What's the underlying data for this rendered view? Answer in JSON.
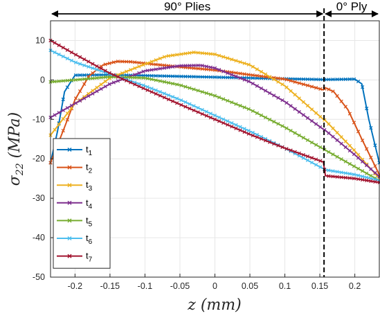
{
  "chart_data": {
    "type": "line",
    "xlabel": "z (mm)",
    "ylabel": "σ22 (MPa)",
    "xlim": [
      -0.235,
      0.235
    ],
    "ylim": [
      -50,
      15
    ],
    "xticks": [
      -0.2,
      -0.15,
      -0.1,
      -0.05,
      0,
      0.05,
      0.1,
      0.15,
      0.2
    ],
    "xtick_labels": [
      "-0.2",
      "-0.15",
      "-0.1",
      "-0.05",
      "0",
      "0.05",
      "0.1",
      "0.15",
      "0.2"
    ],
    "yticks": [
      -50,
      -40,
      -30,
      -20,
      -10,
      0,
      10
    ],
    "ytick_labels": [
      "-50",
      "-40",
      "-30",
      "-20",
      "-10",
      "0",
      "10"
    ],
    "grid": true,
    "legend_position": "bottom-left",
    "regions": [
      {
        "label": "90° Plies",
        "from": -0.235,
        "to": 0.156
      },
      {
        "label": "0° Ply",
        "from": 0.156,
        "to": 0.235
      }
    ],
    "interface_z": 0.156,
    "series": [
      {
        "name": "t1",
        "color": "#0072BD",
        "x": [
          -0.235,
          -0.225,
          -0.215,
          -0.2,
          -0.15,
          -0.1,
          -0.05,
          0,
          0.05,
          0.1,
          0.155,
          0.158,
          0.2,
          0.21,
          0.22,
          0.235
        ],
        "y": [
          -21,
          -13,
          -3,
          1.2,
          1.3,
          1.1,
          0.9,
          0.7,
          0.5,
          0.3,
          0.1,
          0.1,
          0.2,
          -1,
          -10,
          -21
        ]
      },
      {
        "name": "t2",
        "color": "#D95319",
        "x": [
          -0.235,
          -0.215,
          -0.2,
          -0.18,
          -0.16,
          -0.14,
          -0.12,
          -0.1,
          -0.05,
          0,
          0.05,
          0.1,
          0.155,
          0.158,
          0.17,
          0.19,
          0.21,
          0.235
        ],
        "y": [
          -21,
          -12,
          -5,
          1,
          3.8,
          4.7,
          4.6,
          4.2,
          3.3,
          2.5,
          1.3,
          0.2,
          -2.5,
          -2,
          -3,
          -7.5,
          -15,
          -24
        ]
      },
      {
        "name": "t3",
        "color": "#EDB120",
        "x": [
          -0.235,
          -0.2,
          -0.15,
          -0.1,
          -0.07,
          -0.03,
          0,
          0.05,
          0.1,
          0.155,
          0.158,
          0.2,
          0.235
        ],
        "y": [
          -14,
          -6,
          0.5,
          4,
          6,
          7,
          6.5,
          3.8,
          -1.5,
          -10,
          -10.3,
          -18,
          -25
        ]
      },
      {
        "name": "t4",
        "color": "#7E2F8E",
        "x": [
          -0.235,
          -0.2,
          -0.15,
          -0.1,
          -0.05,
          -0.02,
          0,
          0.05,
          0.1,
          0.155,
          0.158,
          0.2,
          0.235
        ],
        "y": [
          -9.5,
          -6,
          -1,
          2.3,
          3.6,
          3.7,
          3,
          -0.5,
          -5.5,
          -12.5,
          -12.8,
          -19,
          -24.5
        ]
      },
      {
        "name": "t5",
        "color": "#77AC30",
        "x": [
          -0.235,
          -0.2,
          -0.15,
          -0.1,
          -0.05,
          0,
          0.05,
          0.1,
          0.155,
          0.158,
          0.2,
          0.235
        ],
        "y": [
          -0.5,
          0,
          0.8,
          0.5,
          -1.3,
          -4,
          -7.5,
          -12,
          -17.5,
          -17.8,
          -22,
          -25.5
        ]
      },
      {
        "name": "t6",
        "color": "#4DBEEE",
        "x": [
          -0.235,
          -0.2,
          -0.15,
          -0.1,
          -0.05,
          0,
          0.05,
          0.1,
          0.155,
          0.158,
          0.2,
          0.235
        ],
        "y": [
          7.5,
          4.5,
          1.5,
          -1.5,
          -5,
          -9,
          -13,
          -17.3,
          -22.5,
          -22.8,
          -24,
          -25.5
        ]
      },
      {
        "name": "t7",
        "color": "#A2142F",
        "x": [
          -0.235,
          -0.2,
          -0.15,
          -0.1,
          -0.05,
          0,
          0.05,
          0.1,
          0.155,
          0.158,
          0.2,
          0.235
        ],
        "y": [
          10,
          6.5,
          1.7,
          -2.3,
          -6.2,
          -10,
          -13.8,
          -17.3,
          -20.8,
          -24.3,
          -25,
          -26
        ]
      }
    ]
  }
}
